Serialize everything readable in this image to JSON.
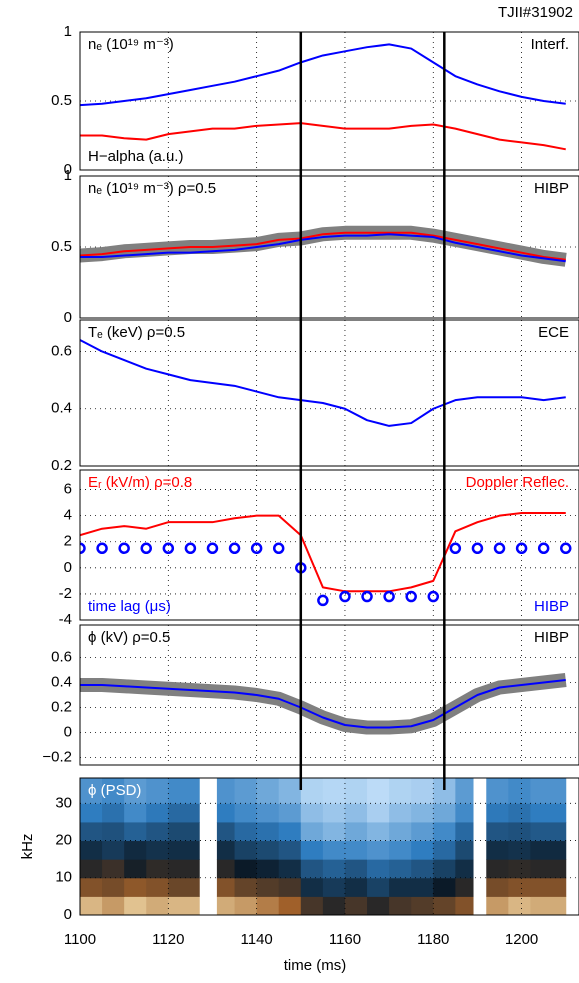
{
  "vlines": [
    1150,
    1182.5
  ],
  "chart_data": [
    {
      "type": "line",
      "title": "TJII#31902",
      "ylim": [
        0,
        1
      ],
      "yticks": [
        0,
        0.5,
        1
      ],
      "annotations": [
        {
          "text": "nₑ (10¹⁹ m⁻³)",
          "corner": "top-left",
          "color": "#000000"
        },
        {
          "text": "Interf.",
          "corner": "top-right",
          "color": "#000000"
        },
        {
          "text": "H−alpha (a.u.)",
          "corner": "bottom-left",
          "color": "#000000"
        }
      ],
      "x": [
        1100,
        1105,
        1110,
        1115,
        1120,
        1125,
        1130,
        1135,
        1140,
        1145,
        1150,
        1155,
        1160,
        1165,
        1170,
        1175,
        1180,
        1185,
        1190,
        1195,
        1200,
        1205,
        1210
      ],
      "series": [
        {
          "color": "#ff0000",
          "values": [
            0.25,
            0.25,
            0.23,
            0.22,
            0.26,
            0.28,
            0.3,
            0.3,
            0.32,
            0.33,
            0.34,
            0.32,
            0.3,
            0.3,
            0.3,
            0.32,
            0.33,
            0.3,
            0.26,
            0.22,
            0.2,
            0.18,
            0.15
          ]
        },
        {
          "color": "#0000ff",
          "values": [
            0.47,
            0.48,
            0.5,
            0.52,
            0.55,
            0.58,
            0.61,
            0.64,
            0.68,
            0.72,
            0.78,
            0.83,
            0.86,
            0.89,
            0.91,
            0.88,
            0.78,
            0.68,
            0.62,
            0.57,
            0.53,
            0.5,
            0.48
          ]
        }
      ]
    },
    {
      "type": "line",
      "ylim": [
        0,
        1
      ],
      "yticks": [
        0,
        0.5,
        1
      ],
      "annotations": [
        {
          "text": "nₑ (10¹⁹ m⁻³) ρ=0.5",
          "corner": "top-left",
          "color": "#000000"
        },
        {
          "text": "HIBP",
          "corner": "top-right",
          "color": "#000000"
        }
      ],
      "x": [
        1100,
        1105,
        1110,
        1115,
        1120,
        1125,
        1130,
        1135,
        1140,
        1145,
        1150,
        1155,
        1160,
        1165,
        1170,
        1175,
        1180,
        1185,
        1190,
        1195,
        1200,
        1205,
        1210
      ],
      "series": [
        {
          "color": "#808080",
          "style": "band",
          "values": [
            0.44,
            0.45,
            0.47,
            0.48,
            0.49,
            0.5,
            0.5,
            0.51,
            0.52,
            0.55,
            0.56,
            0.59,
            0.6,
            0.6,
            0.6,
            0.6,
            0.58,
            0.55,
            0.52,
            0.49,
            0.46,
            0.43,
            0.41
          ]
        },
        {
          "color": "#ff0000",
          "values": [
            0.44,
            0.45,
            0.47,
            0.48,
            0.49,
            0.5,
            0.5,
            0.51,
            0.52,
            0.55,
            0.56,
            0.59,
            0.6,
            0.6,
            0.6,
            0.6,
            0.58,
            0.55,
            0.52,
            0.49,
            0.46,
            0.43,
            0.41
          ]
        },
        {
          "color": "#0000ff",
          "values": [
            0.43,
            0.43,
            0.44,
            0.45,
            0.46,
            0.46,
            0.47,
            0.48,
            0.5,
            0.52,
            0.55,
            0.57,
            0.58,
            0.58,
            0.59,
            0.58,
            0.57,
            0.53,
            0.5,
            0.47,
            0.44,
            0.42,
            0.4
          ]
        }
      ]
    },
    {
      "type": "line",
      "ylim": [
        0.2,
        0.71
      ],
      "yticks": [
        0.2,
        0.4,
        0.6
      ],
      "annotations": [
        {
          "text": "Tₑ (keV) ρ=0.5",
          "corner": "top-left",
          "color": "#000000"
        },
        {
          "text": "ECE",
          "corner": "top-right",
          "color": "#000000"
        }
      ],
      "x": [
        1100,
        1105,
        1110,
        1115,
        1120,
        1125,
        1130,
        1135,
        1140,
        1145,
        1150,
        1155,
        1160,
        1165,
        1170,
        1175,
        1180,
        1185,
        1190,
        1195,
        1200,
        1205,
        1210
      ],
      "series": [
        {
          "color": "#0000ff",
          "values": [
            0.64,
            0.6,
            0.57,
            0.54,
            0.52,
            0.5,
            0.49,
            0.48,
            0.46,
            0.44,
            0.43,
            0.42,
            0.4,
            0.36,
            0.34,
            0.35,
            0.4,
            0.43,
            0.44,
            0.44,
            0.44,
            0.43,
            0.44
          ]
        }
      ]
    },
    {
      "type": "line",
      "ylim": [
        -4,
        7.5
      ],
      "yticks": [
        -4,
        -2,
        0,
        2,
        4,
        6
      ],
      "annotations": [
        {
          "text": "Eᵣ (kV/m) ρ=0.8",
          "corner": "top-left",
          "color": "#ff0000"
        },
        {
          "text": "Doppler Reflec.",
          "corner": "top-right",
          "color": "#ff0000"
        },
        {
          "text": "time lag (μs)",
          "corner": "bottom-left",
          "color": "#0000ff"
        },
        {
          "text": "HIBP",
          "corner": "bottom-right",
          "color": "#0000ff"
        }
      ],
      "x": [
        1100,
        1105,
        1110,
        1115,
        1120,
        1125,
        1130,
        1135,
        1140,
        1145,
        1150,
        1155,
        1160,
        1165,
        1170,
        1175,
        1180,
        1185,
        1190,
        1195,
        1200,
        1205,
        1210
      ],
      "series": [
        {
          "color": "#ff0000",
          "values": [
            2.5,
            3,
            3.2,
            3,
            3.5,
            3.5,
            3.5,
            3.8,
            4,
            4,
            2.5,
            -1.5,
            -1.8,
            -1.8,
            -1.8,
            -1.5,
            -1,
            2.8,
            3.5,
            4,
            4.2,
            4.2,
            4.2
          ]
        },
        {
          "color": "#0000ff",
          "marker": "circle",
          "values": [
            1.5,
            1.5,
            1.5,
            1.5,
            1.5,
            1.5,
            1.5,
            1.5,
            1.5,
            1.5,
            0,
            -2.5,
            -2.2,
            -2.2,
            -2.2,
            -2.2,
            -2.2,
            1.5,
            1.5,
            1.5,
            1.5,
            1.5,
            1.5
          ]
        }
      ]
    },
    {
      "type": "line",
      "ylim": [
        -0.26,
        0.86
      ],
      "yticks": [
        {
          "value": -0.2,
          "label": "−0.2"
        },
        0,
        0.2,
        0.4,
        0.6
      ],
      "annotations": [
        {
          "text": "ϕ (kV) ρ=0.5",
          "corner": "top-left",
          "color": "#000000"
        },
        {
          "text": "HIBP",
          "corner": "top-right",
          "color": "#000000"
        }
      ],
      "x": [
        1100,
        1105,
        1110,
        1115,
        1120,
        1125,
        1130,
        1135,
        1140,
        1145,
        1150,
        1155,
        1160,
        1165,
        1170,
        1175,
        1180,
        1185,
        1190,
        1195,
        1200,
        1205,
        1210
      ],
      "series": [
        {
          "color": "#808080",
          "style": "band",
          "values": [
            0.38,
            0.38,
            0.37,
            0.36,
            0.35,
            0.34,
            0.33,
            0.32,
            0.3,
            0.27,
            0.2,
            0.12,
            0.06,
            0.04,
            0.04,
            0.05,
            0.1,
            0.2,
            0.3,
            0.36,
            0.38,
            0.4,
            0.42
          ]
        },
        {
          "color": "#0000ff",
          "values": [
            0.38,
            0.38,
            0.37,
            0.36,
            0.35,
            0.34,
            0.33,
            0.32,
            0.3,
            0.27,
            0.2,
            0.12,
            0.06,
            0.04,
            0.04,
            0.05,
            0.1,
            0.2,
            0.3,
            0.36,
            0.38,
            0.4,
            0.42
          ]
        }
      ]
    },
    {
      "type": "heatmap",
      "ylabel": "kHz",
      "xlabel": "time (ms)",
      "ylim": [
        0,
        36.8
      ],
      "yticks": [
        0,
        10,
        20,
        30
      ],
      "xlim": [
        1100,
        1213
      ],
      "xticks": [
        1100,
        1120,
        1140,
        1160,
        1180,
        1200
      ],
      "annotations": [
        {
          "text": "ϕ (PSD)",
          "corner": "top-left",
          "color": "#ffffff"
        }
      ],
      "colormap": [
        "#cfe8ff",
        "#2f7dc0",
        "#0b1a28",
        "#a0602a",
        "#fff0c0"
      ],
      "zlim": [
        0,
        1
      ],
      "xbins": [
        1100,
        1105,
        1110,
        1115,
        1120,
        1127,
        1131,
        1135,
        1140,
        1145,
        1150,
        1155,
        1160,
        1165,
        1170,
        1175,
        1180,
        1185,
        1189,
        1192,
        1197,
        1202,
        1210
      ],
      "ybins": [
        0,
        5,
        10,
        15,
        20,
        25,
        30,
        36.8
      ],
      "z": [
        [
          0.9,
          0.85,
          0.92,
          0.88,
          0.9,
          null,
          0.88,
          0.85,
          0.8,
          0.75,
          0.6,
          0.55,
          0.6,
          0.55,
          0.6,
          0.62,
          0.65,
          0.7,
          null,
          0.85,
          0.9,
          0.88
        ],
        [
          0.7,
          0.68,
          0.72,
          0.7,
          0.66,
          null,
          0.7,
          0.65,
          0.62,
          0.6,
          0.45,
          0.42,
          0.45,
          0.4,
          0.45,
          0.45,
          0.5,
          0.55,
          null,
          0.68,
          0.7,
          0.7
        ],
        [
          0.55,
          0.58,
          0.52,
          0.56,
          0.55,
          null,
          0.55,
          0.5,
          0.48,
          0.45,
          0.35,
          0.32,
          0.35,
          0.3,
          0.32,
          0.35,
          0.4,
          0.45,
          null,
          0.55,
          0.56,
          0.55
        ],
        [
          0.45,
          0.42,
          0.46,
          0.44,
          0.45,
          null,
          0.45,
          0.4,
          0.38,
          0.35,
          0.25,
          0.22,
          0.22,
          0.2,
          0.22,
          0.25,
          0.3,
          0.38,
          null,
          0.45,
          0.44,
          0.46
        ],
        [
          0.35,
          0.36,
          0.32,
          0.35,
          0.38,
          null,
          0.35,
          0.3,
          0.28,
          0.25,
          0.15,
          0.12,
          0.15,
          0.12,
          0.15,
          0.18,
          0.22,
          0.3,
          null,
          0.35,
          0.36,
          0.34
        ],
        [
          0.25,
          0.28,
          0.22,
          0.26,
          0.3,
          null,
          0.25,
          0.22,
          0.2,
          0.18,
          0.1,
          0.08,
          0.1,
          0.06,
          0.1,
          0.12,
          0.15,
          0.22,
          null,
          0.26,
          0.28,
          0.25
        ],
        [
          0.2,
          0.22,
          0.18,
          0.2,
          0.22,
          null,
          0.2,
          0.18,
          0.15,
          0.12,
          0.05,
          0.04,
          0.05,
          0.03,
          0.05,
          0.06,
          0.1,
          0.18,
          null,
          0.2,
          0.22,
          0.2
        ]
      ]
    }
  ]
}
